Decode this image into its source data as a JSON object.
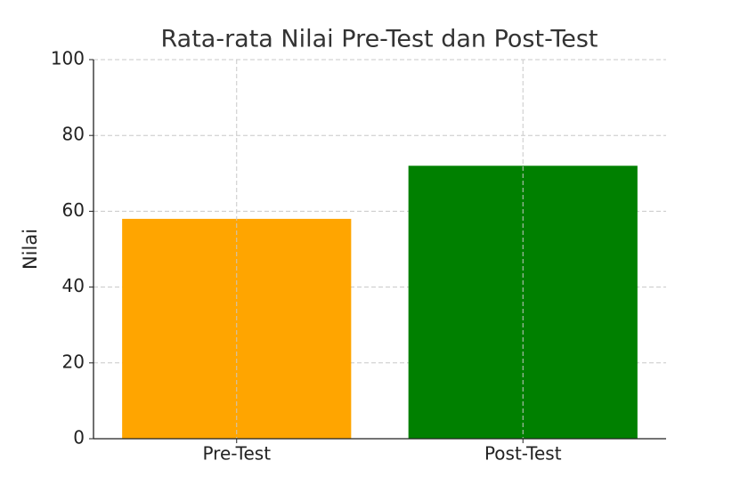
{
  "chart_data": {
    "type": "bar",
    "title": "Rata-rata Nilai Pre-Test dan Post-Test",
    "y_label": "Nilai",
    "categories": [
      "Pre-Test",
      "Post-Test"
    ],
    "values": [
      58,
      72
    ],
    "colors": [
      "#ffa500",
      "#008000"
    ],
    "ylim": [
      0,
      100
    ],
    "yticks": [
      0,
      20,
      40,
      60,
      80,
      100
    ],
    "grid": true
  }
}
